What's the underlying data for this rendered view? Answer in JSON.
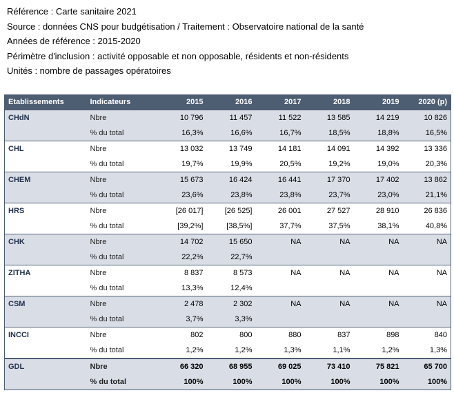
{
  "meta": {
    "reference": "Référence : Carte sanitaire 2021",
    "source": "Source : données CNS pour budgétisation / Traitement : Observatoire national de la santé",
    "years": "Années de référence : 2015-2020",
    "scope": "Périmètre d'inclusion : activité opposable et non opposable, résidents et non-résidents",
    "units": "Unités : nombre de passages opératoires"
  },
  "table": {
    "headers": [
      "Etablissements",
      "Indicateurs",
      "2015",
      "2016",
      "2017",
      "2018",
      "2019",
      "2020 (p)"
    ],
    "rows": [
      {
        "etab": "CHdN",
        "ind": "Nbre",
        "vals": [
          "10 796",
          "11 457",
          "11 522",
          "13 585",
          "14 219",
          "10 826"
        ]
      },
      {
        "etab": "",
        "ind": "% du total",
        "vals": [
          "16,3%",
          "16,6%",
          "16,7%",
          "18,5%",
          "18,8%",
          "16,5%"
        ]
      },
      {
        "etab": "CHL",
        "ind": "Nbre",
        "vals": [
          "13 032",
          "13 749",
          "14 181",
          "14 091",
          "14 392",
          "13 336"
        ]
      },
      {
        "etab": "",
        "ind": "% du total",
        "vals": [
          "19,7%",
          "19,9%",
          "20,5%",
          "19,2%",
          "19,0%",
          "20,3%"
        ]
      },
      {
        "etab": "CHEM",
        "ind": "Nbre",
        "vals": [
          "15 673",
          "16 424",
          "16 441",
          "17 370",
          "17 402",
          "13 862"
        ]
      },
      {
        "etab": "",
        "ind": "% du total",
        "vals": [
          "23,6%",
          "23,8%",
          "23,8%",
          "23,7%",
          "23,0%",
          "21,1%"
        ]
      },
      {
        "etab": "HRS",
        "ind": "Nbre",
        "vals": [
          "[26 017]",
          "[26 525]",
          "26 001",
          "27 527",
          "28 910",
          "26 836"
        ]
      },
      {
        "etab": "",
        "ind": "% du total",
        "vals": [
          "[39,2%]",
          "[38,5%]",
          "37,7%",
          "37,5%",
          "38,1%",
          "40,8%"
        ]
      },
      {
        "etab": "CHK",
        "ind": "Nbre",
        "vals": [
          "14 702",
          "15 650",
          "NA",
          "NA",
          "NA",
          "NA"
        ]
      },
      {
        "etab": "",
        "ind": "% du total",
        "vals": [
          "22,2%",
          "22,7%",
          "",
          "",
          "",
          ""
        ]
      },
      {
        "etab": "ZITHA",
        "ind": "Nbre",
        "vals": [
          "8 837",
          "8 573",
          "NA",
          "NA",
          "NA",
          "NA"
        ]
      },
      {
        "etab": "",
        "ind": "% du total",
        "vals": [
          "13,3%",
          "12,4%",
          "",
          "",
          "",
          ""
        ]
      },
      {
        "etab": "CSM",
        "ind": "Nbre",
        "vals": [
          "2 478",
          "2 302",
          "NA",
          "NA",
          "NA",
          "NA"
        ]
      },
      {
        "etab": "",
        "ind": "% du total",
        "vals": [
          "3,7%",
          "3,3%",
          "",
          "",
          "",
          ""
        ]
      },
      {
        "etab": "INCCI",
        "ind": "Nbre",
        "vals": [
          "802",
          "800",
          "880",
          "837",
          "898",
          "840"
        ]
      },
      {
        "etab": "",
        "ind": "% du total",
        "vals": [
          "1,2%",
          "1,2%",
          "1,3%",
          "1,1%",
          "1,2%",
          "1,3%"
        ]
      },
      {
        "etab": "GDL",
        "ind": "Nbre",
        "vals": [
          "66 320",
          "68 955",
          "69 025",
          "73 410",
          "75 821",
          "65 700"
        ]
      },
      {
        "etab": "",
        "ind": "% du total",
        "vals": [
          "100%",
          "100%",
          "100%",
          "100%",
          "100%",
          "100%"
        ]
      }
    ]
  }
}
